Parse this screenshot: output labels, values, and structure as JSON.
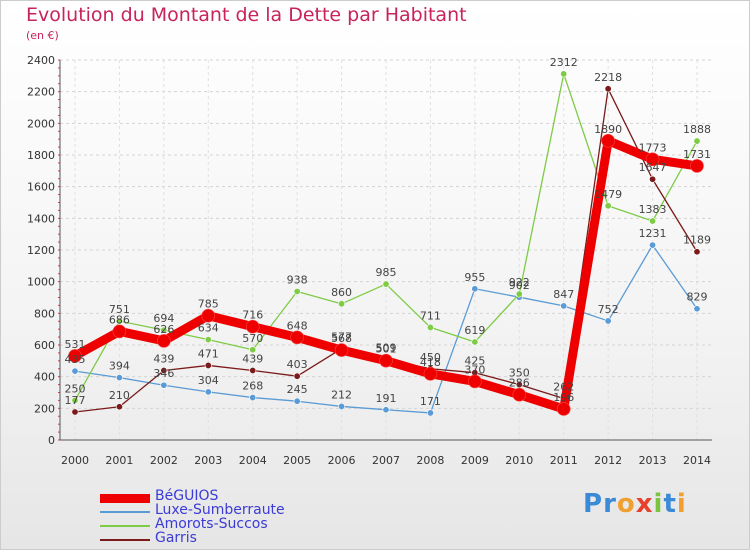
{
  "title": "Evolution du Montant de la Dette par Habitant",
  "subtitle": "(en €)",
  "logo": {
    "letters": [
      "P",
      "r",
      "o",
      "x",
      "i",
      "t",
      "i"
    ],
    "colors": [
      "#3a8ad8",
      "#3a8ad8",
      "#f0a030",
      "#e8402c",
      "#7cc440",
      "#3a8ad8",
      "#f0a030"
    ]
  },
  "chart_data": {
    "type": "line",
    "title": "Evolution du Montant de la Dette par Habitant",
    "ylabel": "(en €)",
    "xlabel": "",
    "x": [
      "2000",
      "2001",
      "2002",
      "2003",
      "2004",
      "2005",
      "2006",
      "2007",
      "2008",
      "2009",
      "2010",
      "2011",
      "2012",
      "2013",
      "2014"
    ],
    "ylim": [
      0,
      2400
    ],
    "yticks": [
      0,
      200,
      400,
      600,
      800,
      1000,
      1200,
      1400,
      1600,
      1800,
      2000,
      2200,
      2400
    ],
    "grid": true,
    "legend_position": "bottom-left",
    "series": [
      {
        "name": "BéGUIOS",
        "color": "#ee0000",
        "values": [
          531,
          686,
          626,
          785,
          716,
          648,
          568,
          501,
          418,
          370,
          286,
          196,
          1890,
          1773,
          1731
        ]
      },
      {
        "name": "Luxe-Sumberraute",
        "color": "#5b9bd5",
        "values": [
          435,
          394,
          346,
          304,
          268,
          245,
          212,
          191,
          171,
          955,
          902,
          847,
          752,
          1231,
          829
        ]
      },
      {
        "name": "Amorots-Succos",
        "color": "#7ecb46",
        "values": [
          250,
          751,
          694,
          634,
          570,
          938,
          860,
          985,
          711,
          619,
          922,
          2312,
          1479,
          1383,
          1888
        ]
      },
      {
        "name": "Garris",
        "color": "#7a1a1a",
        "values": [
          177,
          210,
          439,
          471,
          439,
          403,
          577,
          509,
          450,
          425,
          350,
          262,
          2218,
          1647,
          1189
        ]
      }
    ]
  }
}
